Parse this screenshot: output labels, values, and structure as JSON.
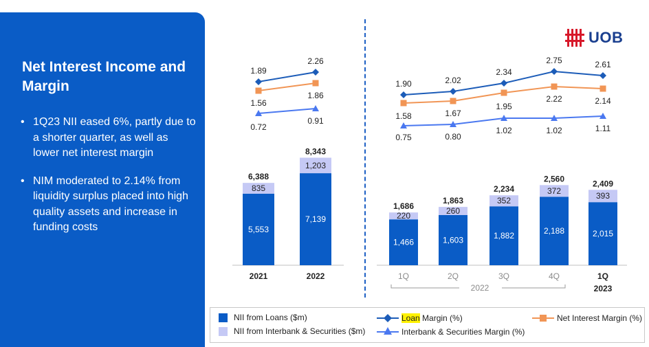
{
  "left_panel": {
    "title": "Net Interest Income and Margin",
    "bullets": [
      "1Q23 NII eased 6%, partly due to a shorter quarter, as well as lower net interest margin",
      "NIM moderated to 2.14% from liquidity surplus placed into high quality assets and increase in funding costs"
    ]
  },
  "logo": {
    "text": "UOB"
  },
  "colors": {
    "panel_bg": "#0a5cc6",
    "loans_bar": "#0a5cc6",
    "interbank_bar": "#c5c9f5",
    "loan_margin": "#1c5cb8",
    "nim": "#f19555",
    "interbank_margin": "#4a78f0"
  },
  "chart_data": [
    {
      "type": "bar",
      "stacked": true,
      "categories": [
        "2021",
        "2022"
      ],
      "series": [
        {
          "name": "NII from Loans ($m)",
          "values": [
            5553,
            7139
          ]
        },
        {
          "name": "NII from Interbank & Securities ($m)",
          "values": [
            835,
            1203
          ]
        }
      ],
      "totals": [
        6388,
        8343
      ],
      "lines": [
        {
          "name": "Loan Margin (%)",
          "values": [
            1.89,
            2.26
          ]
        },
        {
          "name": "Net Interest Margin (%)",
          "values": [
            1.56,
            1.86
          ]
        },
        {
          "name": "Interbank & Securities Margin (%)",
          "values": [
            0.72,
            0.91
          ]
        }
      ],
      "display": {
        "loans": [
          "5,553",
          "7,139"
        ],
        "interbank": [
          "835",
          "1,203"
        ],
        "totals": [
          "6,388",
          "8,343"
        ],
        "loan_margin": [
          "1.89",
          "2.26"
        ],
        "nim": [
          "1.56",
          "1.86"
        ],
        "interbank_margin": [
          "0.72",
          "0.91"
        ]
      }
    },
    {
      "type": "bar",
      "stacked": true,
      "categories": [
        "1Q",
        "2Q",
        "3Q",
        "4Q",
        "1Q"
      ],
      "category_group_label": "2022",
      "last_category_sublabel": "2023",
      "series": [
        {
          "name": "NII from Loans ($m)",
          "values": [
            1466,
            1603,
            1882,
            2188,
            2015
          ]
        },
        {
          "name": "NII from Interbank & Securities ($m)",
          "values": [
            220,
            260,
            352,
            372,
            393
          ]
        }
      ],
      "totals": [
        1686,
        1863,
        2234,
        2560,
        2409
      ],
      "lines": [
        {
          "name": "Loan Margin (%)",
          "values": [
            1.9,
            2.02,
            2.34,
            2.75,
            2.61
          ]
        },
        {
          "name": "Net Interest Margin (%)",
          "values": [
            1.58,
            1.67,
            1.95,
            2.22,
            2.14
          ]
        },
        {
          "name": "Interbank & Securities Margin (%)",
          "values": [
            0.75,
            0.8,
            1.02,
            1.02,
            1.11
          ]
        }
      ],
      "display": {
        "loans": [
          "1,466",
          "1,603",
          "1,882",
          "2,188",
          "2,015"
        ],
        "interbank": [
          "220",
          "260",
          "352",
          "372",
          "393"
        ],
        "totals": [
          "1,686",
          "1,863",
          "2,234",
          "2,560",
          "2,409"
        ],
        "loan_margin": [
          "1.90",
          "2.02",
          "2.34",
          "2.75",
          "2.61"
        ],
        "nim": [
          "1.58",
          "1.67",
          "1.95",
          "2.22",
          "2.14"
        ],
        "interbank_margin": [
          "0.75",
          "0.80",
          "1.02",
          "1.02",
          "1.11"
        ]
      }
    }
  ],
  "legend": {
    "loans": "NII from Loans ($m)",
    "interbank": "NII from Interbank & Securities ($m)",
    "loan_margin_hl": "Loan",
    "loan_margin_rest": " Margin (%)",
    "interbank_margin": "Interbank & Securities Margin (%)",
    "nim": "Net Interest Margin (%)"
  }
}
